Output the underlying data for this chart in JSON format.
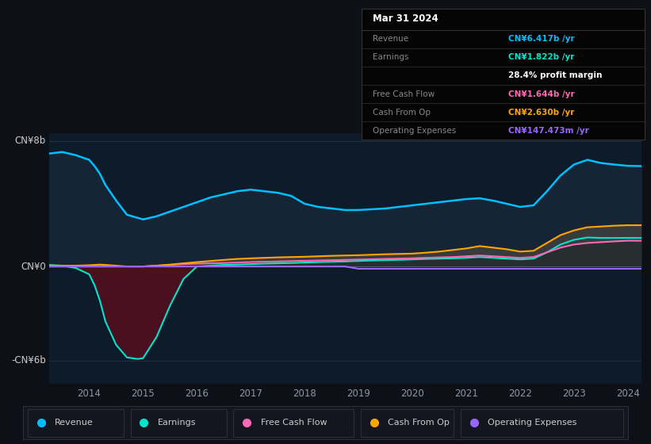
{
  "bg_color": "#0d1117",
  "plot_bg_color": "#0d1b2a",
  "years": [
    2013.25,
    2013.5,
    2013.75,
    2014.0,
    2014.1,
    2014.2,
    2014.3,
    2014.5,
    2014.7,
    2014.9,
    2015.0,
    2015.25,
    2015.5,
    2015.75,
    2016.0,
    2016.25,
    2016.5,
    2016.75,
    2017.0,
    2017.25,
    2017.5,
    2017.75,
    2018.0,
    2018.25,
    2018.5,
    2018.75,
    2019.0,
    2019.25,
    2019.5,
    2019.75,
    2020.0,
    2020.25,
    2020.5,
    2020.75,
    2021.0,
    2021.25,
    2021.5,
    2021.75,
    2022.0,
    2022.25,
    2022.5,
    2022.75,
    2023.0,
    2023.25,
    2023.5,
    2023.75,
    2024.0,
    2024.25
  ],
  "revenue": [
    7.2,
    7.3,
    7.1,
    6.8,
    6.4,
    5.9,
    5.2,
    4.2,
    3.3,
    3.1,
    3.0,
    3.2,
    3.5,
    3.8,
    4.1,
    4.4,
    4.6,
    4.8,
    4.9,
    4.8,
    4.7,
    4.5,
    4.0,
    3.8,
    3.7,
    3.6,
    3.6,
    3.65,
    3.7,
    3.8,
    3.9,
    4.0,
    4.1,
    4.2,
    4.3,
    4.35,
    4.2,
    4.0,
    3.8,
    3.9,
    4.8,
    5.8,
    6.5,
    6.8,
    6.6,
    6.5,
    6.42,
    6.4
  ],
  "earnings": [
    0.1,
    0.05,
    -0.1,
    -0.5,
    -1.2,
    -2.2,
    -3.5,
    -5.0,
    -5.8,
    -5.9,
    -5.85,
    -4.5,
    -2.5,
    -0.8,
    0.0,
    0.05,
    0.1,
    0.12,
    0.15,
    0.18,
    0.2,
    0.22,
    0.25,
    0.28,
    0.3,
    0.32,
    0.35,
    0.38,
    0.4,
    0.42,
    0.45,
    0.48,
    0.5,
    0.52,
    0.55,
    0.6,
    0.55,
    0.5,
    0.45,
    0.5,
    0.9,
    1.4,
    1.7,
    1.85,
    1.82,
    1.82,
    1.822,
    1.82
  ],
  "free_cash_flow": [
    0.0,
    0.0,
    0.0,
    0.0,
    0.0,
    0.0,
    0.0,
    0.0,
    0.0,
    0.0,
    0.0,
    0.05,
    0.1,
    0.15,
    0.18,
    0.2,
    0.22,
    0.25,
    0.28,
    0.3,
    0.32,
    0.34,
    0.36,
    0.38,
    0.4,
    0.42,
    0.44,
    0.46,
    0.48,
    0.5,
    0.52,
    0.55,
    0.58,
    0.6,
    0.65,
    0.7,
    0.65,
    0.6,
    0.55,
    0.6,
    0.9,
    1.2,
    1.4,
    1.5,
    1.55,
    1.6,
    1.644,
    1.64
  ],
  "cash_from_op": [
    0.05,
    0.05,
    0.05,
    0.08,
    0.1,
    0.12,
    0.1,
    0.05,
    0.0,
    0.0,
    0.0,
    0.05,
    0.12,
    0.2,
    0.28,
    0.35,
    0.42,
    0.48,
    0.52,
    0.55,
    0.58,
    0.6,
    0.62,
    0.65,
    0.68,
    0.7,
    0.72,
    0.75,
    0.78,
    0.8,
    0.82,
    0.88,
    0.95,
    1.05,
    1.15,
    1.3,
    1.2,
    1.1,
    0.95,
    1.0,
    1.5,
    2.0,
    2.3,
    2.5,
    2.55,
    2.6,
    2.63,
    2.63
  ],
  "operating_expenses": [
    0.0,
    0.0,
    0.0,
    0.0,
    0.0,
    0.0,
    0.0,
    0.0,
    0.0,
    0.0,
    0.0,
    0.0,
    0.0,
    0.0,
    0.0,
    0.0,
    0.0,
    0.0,
    0.0,
    0.0,
    0.0,
    0.0,
    0.0,
    0.0,
    0.0,
    0.0,
    -0.147,
    -0.147,
    -0.147,
    -0.147,
    -0.147,
    -0.147,
    -0.147,
    -0.147,
    -0.147,
    -0.147,
    -0.147,
    -0.147,
    -0.147,
    -0.147,
    -0.147,
    -0.147,
    -0.147,
    -0.147,
    -0.147,
    -0.147,
    -0.147,
    -0.147
  ],
  "revenue_color": "#00bfff",
  "earnings_color": "#00e5cc",
  "free_cash_flow_color": "#ff69b4",
  "cash_from_op_color": "#ffa500",
  "operating_expenses_color": "#9966ff",
  "revenue_fill_color": "#152535",
  "earnings_fill_neg_color": "#4a1020",
  "cash_from_op_fill_color": "#2a3030",
  "ylabel_8b": "CN¥8b",
  "ylabel_0": "CN¥0",
  "ylabel_neg6b": "-CN¥6b",
  "x_ticks": [
    2014,
    2015,
    2016,
    2017,
    2018,
    2019,
    2020,
    2021,
    2022,
    2023,
    2024
  ],
  "ylim_min": -7.5,
  "ylim_max": 8.5,
  "tooltip_title": "Mar 31 2024",
  "tooltip_revenue": "CN¥6.417b /yr",
  "tooltip_earnings": "CN¥1.822b /yr",
  "tooltip_margin": "28.4% profit margin",
  "tooltip_fcf": "CN¥1.644b /yr",
  "tooltip_cashop": "CN¥2.630b /yr",
  "tooltip_opex": "CN¥147.473m /yr",
  "legend_items": [
    "Revenue",
    "Earnings",
    "Free Cash Flow",
    "Cash From Op",
    "Operating Expenses"
  ],
  "legend_colors": [
    "#00bfff",
    "#00e5cc",
    "#ff69b4",
    "#ffa500",
    "#9966ff"
  ]
}
